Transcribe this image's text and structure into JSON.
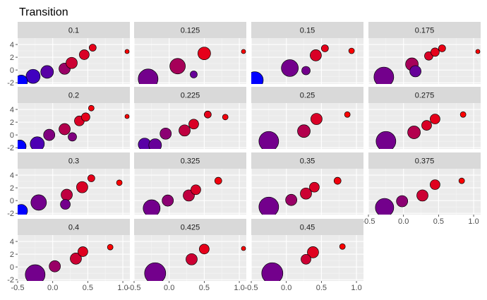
{
  "chart_data": {
    "type": "scatter",
    "title": "Transition",
    "layout": "facet_wrap",
    "ncol": 4,
    "xlim": [
      -0.5,
      1.1
    ],
    "ylim": [
      -2.2,
      5.0
    ],
    "x_ticks": [
      -0.5,
      0.0,
      0.5,
      1.0
    ],
    "x_tick_labels": [
      "-0.5",
      "0.0",
      "0.5",
      "1.0"
    ],
    "y_ticks": [
      -2,
      0,
      2,
      4
    ],
    "y_tick_labels": [
      "-2",
      "0",
      "2",
      "4"
    ],
    "grid": true,
    "point_outline": "#000000",
    "color_scale": {
      "low": "#0000ff",
      "high": "#ff0000"
    },
    "facets": [
      {
        "label": "0.1",
        "points": [
          {
            "x": -0.45,
            "y": -1.8,
            "size": 9,
            "c": 0.0
          },
          {
            "x": -0.28,
            "y": -1.0,
            "size": 10,
            "c": 0.25
          },
          {
            "x": -0.08,
            "y": -0.3,
            "size": 9,
            "c": 0.35
          },
          {
            "x": 0.17,
            "y": 0.2,
            "size": 8,
            "c": 0.6
          },
          {
            "x": 0.27,
            "y": 1.1,
            "size": 8,
            "c": 0.8
          },
          {
            "x": 0.45,
            "y": 2.4,
            "size": 7,
            "c": 0.85
          },
          {
            "x": 0.57,
            "y": 3.5,
            "size": 5,
            "c": 0.9
          },
          {
            "x": 1.06,
            "y": 2.9,
            "size": 3,
            "c": 1.0
          }
        ]
      },
      {
        "label": "0.125",
        "points": [
          {
            "x": -0.3,
            "y": -1.4,
            "size": 14,
            "c": 0.45
          },
          {
            "x": 0.12,
            "y": 0.6,
            "size": 11,
            "c": 0.65
          },
          {
            "x": 0.35,
            "y": -0.7,
            "size": 5,
            "c": 0.4
          },
          {
            "x": 0.5,
            "y": 2.6,
            "size": 9,
            "c": 0.9
          },
          {
            "x": 1.06,
            "y": 2.9,
            "size": 3,
            "c": 1.0
          }
        ]
      },
      {
        "label": "0.15",
        "points": [
          {
            "x": -0.45,
            "y": -1.6,
            "size": 12,
            "c": 0.0
          },
          {
            "x": 0.05,
            "y": 0.3,
            "size": 12,
            "c": 0.45
          },
          {
            "x": 0.28,
            "y": -0.1,
            "size": 6,
            "c": 0.45
          },
          {
            "x": 0.42,
            "y": 2.3,
            "size": 8,
            "c": 0.85
          },
          {
            "x": 0.55,
            "y": 3.4,
            "size": 5,
            "c": 0.9
          },
          {
            "x": 0.93,
            "y": 3.0,
            "size": 4,
            "c": 1.0
          }
        ]
      },
      {
        "label": "0.175",
        "points": [
          {
            "x": -0.28,
            "y": -1.1,
            "size": 14,
            "c": 0.45
          },
          {
            "x": 0.12,
            "y": 0.9,
            "size": 9,
            "c": 0.65
          },
          {
            "x": 0.17,
            "y": -0.2,
            "size": 8,
            "c": 0.4
          },
          {
            "x": 0.36,
            "y": 2.2,
            "size": 6,
            "c": 0.85
          },
          {
            "x": 0.45,
            "y": 2.8,
            "size": 6,
            "c": 0.9
          },
          {
            "x": 0.55,
            "y": 3.4,
            "size": 5,
            "c": 0.92
          },
          {
            "x": 1.06,
            "y": 2.9,
            "size": 3,
            "c": 1.0
          }
        ]
      },
      {
        "label": "0.2",
        "points": [
          {
            "x": -0.47,
            "y": -1.8,
            "size": 9,
            "c": 0.0
          },
          {
            "x": -0.22,
            "y": -1.4,
            "size": 10,
            "c": 0.3
          },
          {
            "x": -0.05,
            "y": 0.0,
            "size": 8,
            "c": 0.5
          },
          {
            "x": 0.17,
            "y": 0.9,
            "size": 8,
            "c": 0.7
          },
          {
            "x": 0.28,
            "y": -0.3,
            "size": 6,
            "c": 0.5
          },
          {
            "x": 0.38,
            "y": 2.2,
            "size": 7,
            "c": 0.85
          },
          {
            "x": 0.47,
            "y": 2.8,
            "size": 6,
            "c": 0.9
          },
          {
            "x": 0.55,
            "y": 4.2,
            "size": 4,
            "c": 0.95
          },
          {
            "x": 1.06,
            "y": 2.9,
            "size": 3,
            "c": 1.0
          }
        ]
      },
      {
        "label": "0.225",
        "points": [
          {
            "x": -0.35,
            "y": -1.5,
            "size": 9,
            "c": 0.35
          },
          {
            "x": -0.2,
            "y": -1.6,
            "size": 9,
            "c": 0.4
          },
          {
            "x": -0.05,
            "y": 0.2,
            "size": 8,
            "c": 0.55
          },
          {
            "x": 0.22,
            "y": 0.7,
            "size": 8,
            "c": 0.75
          },
          {
            "x": 0.35,
            "y": 1.7,
            "size": 7,
            "c": 0.85
          },
          {
            "x": 0.55,
            "y": 3.2,
            "size": 5,
            "c": 0.9
          },
          {
            "x": 0.8,
            "y": 2.8,
            "size": 4,
            "c": 0.95
          }
        ]
      },
      {
        "label": "0.25",
        "points": [
          {
            "x": -0.25,
            "y": -1.0,
            "size": 14,
            "c": 0.45
          },
          {
            "x": 0.25,
            "y": 0.6,
            "size": 9,
            "c": 0.7
          },
          {
            "x": 0.43,
            "y": 2.5,
            "size": 8,
            "c": 0.85
          },
          {
            "x": 0.87,
            "y": 3.2,
            "size": 4,
            "c": 1.0
          }
        ]
      },
      {
        "label": "0.275",
        "points": [
          {
            "x": -0.25,
            "y": -1.0,
            "size": 14,
            "c": 0.45
          },
          {
            "x": 0.15,
            "y": 0.4,
            "size": 9,
            "c": 0.7
          },
          {
            "x": 0.33,
            "y": 1.5,
            "size": 7,
            "c": 0.85
          },
          {
            "x": 0.45,
            "y": 2.5,
            "size": 7,
            "c": 0.9
          },
          {
            "x": 0.85,
            "y": 3.2,
            "size": 4,
            "c": 1.0
          }
        ]
      },
      {
        "label": "0.3",
        "points": [
          {
            "x": -0.45,
            "y": -1.6,
            "size": 9,
            "c": 0.0
          },
          {
            "x": -0.2,
            "y": -0.3,
            "size": 11,
            "c": 0.45
          },
          {
            "x": 0.18,
            "y": -0.6,
            "size": 7,
            "c": 0.45
          },
          {
            "x": 0.2,
            "y": 0.9,
            "size": 8,
            "c": 0.75
          },
          {
            "x": 0.42,
            "y": 2.1,
            "size": 8,
            "c": 0.85
          },
          {
            "x": 0.55,
            "y": 3.5,
            "size": 5,
            "c": 0.9
          },
          {
            "x": 0.95,
            "y": 2.8,
            "size": 4,
            "c": 1.0
          }
        ]
      },
      {
        "label": "0.325",
        "points": [
          {
            "x": -0.25,
            "y": -1.2,
            "size": 12,
            "c": 0.45
          },
          {
            "x": -0.02,
            "y": 0.0,
            "size": 8,
            "c": 0.55
          },
          {
            "x": 0.28,
            "y": 0.8,
            "size": 8,
            "c": 0.75
          },
          {
            "x": 0.38,
            "y": 1.7,
            "size": 7,
            "c": 0.85
          },
          {
            "x": 0.7,
            "y": 3.1,
            "size": 5,
            "c": 0.95
          }
        ]
      },
      {
        "label": "0.35",
        "points": [
          {
            "x": -0.25,
            "y": -1.0,
            "size": 14,
            "c": 0.45
          },
          {
            "x": 0.07,
            "y": 0.1,
            "size": 8,
            "c": 0.6
          },
          {
            "x": 0.28,
            "y": 1.1,
            "size": 8,
            "c": 0.8
          },
          {
            "x": 0.4,
            "y": 2.1,
            "size": 7,
            "c": 0.85
          },
          {
            "x": 0.73,
            "y": 3.1,
            "size": 5,
            "c": 0.95
          }
        ]
      },
      {
        "label": "0.375",
        "points": [
          {
            "x": -0.27,
            "y": -1.1,
            "size": 13,
            "c": 0.45
          },
          {
            "x": -0.02,
            "y": -0.1,
            "size": 8,
            "c": 0.55
          },
          {
            "x": 0.27,
            "y": 0.8,
            "size": 8,
            "c": 0.8
          },
          {
            "x": 0.45,
            "y": 2.5,
            "size": 7,
            "c": 0.88
          },
          {
            "x": 0.83,
            "y": 3.1,
            "size": 4,
            "c": 1.0
          }
        ]
      },
      {
        "label": "0.4",
        "points": [
          {
            "x": -0.25,
            "y": -1.2,
            "size": 14,
            "c": 0.45
          },
          {
            "x": 0.03,
            "y": 0.1,
            "size": 8,
            "c": 0.6
          },
          {
            "x": 0.33,
            "y": 1.3,
            "size": 8,
            "c": 0.8
          },
          {
            "x": 0.43,
            "y": 2.4,
            "size": 7,
            "c": 0.88
          },
          {
            "x": 0.82,
            "y": 3.1,
            "size": 4,
            "c": 1.0
          }
        ]
      },
      {
        "label": "0.425",
        "points": [
          {
            "x": -0.2,
            "y": -1.0,
            "size": 15,
            "c": 0.45
          },
          {
            "x": 0.32,
            "y": 1.2,
            "size": 8,
            "c": 0.8
          },
          {
            "x": 0.5,
            "y": 2.8,
            "size": 7,
            "c": 0.9
          },
          {
            "x": 1.06,
            "y": 2.9,
            "size": 3,
            "c": 1.0
          }
        ]
      },
      {
        "label": "0.45",
        "points": [
          {
            "x": -0.2,
            "y": -1.0,
            "size": 15,
            "c": 0.45
          },
          {
            "x": 0.28,
            "y": 1.2,
            "size": 7,
            "c": 0.8
          },
          {
            "x": 0.38,
            "y": 2.3,
            "size": 8,
            "c": 0.88
          },
          {
            "x": 0.8,
            "y": 3.2,
            "size": 4,
            "c": 1.0
          }
        ]
      }
    ]
  }
}
